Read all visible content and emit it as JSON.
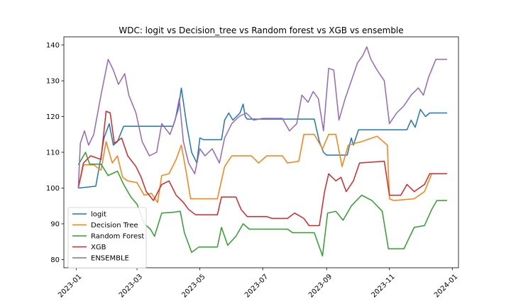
{
  "chart_data": {
    "type": "line",
    "title": "WDC: logit vs Decision_tree vs Random forest vs XGB vs ensemble",
    "xlabel": "",
    "ylabel": "",
    "x_range": [
      "2022-12-20",
      "2024-01-07"
    ],
    "ylim": [
      77.7,
      142.3
    ],
    "x_ticks": [
      {
        "date": "2023-01-01",
        "label": "2023-01"
      },
      {
        "date": "2023-03-01",
        "label": "2023-03"
      },
      {
        "date": "2023-05-01",
        "label": "2023-05"
      },
      {
        "date": "2023-07-01",
        "label": "2023-07"
      },
      {
        "date": "2023-09-01",
        "label": "2023-09"
      },
      {
        "date": "2023-11-01",
        "label": "2023-11"
      },
      {
        "date": "2024-01-01",
        "label": "2024-01"
      }
    ],
    "y_ticks": [
      80,
      90,
      100,
      110,
      120,
      130,
      140
    ],
    "grid": false,
    "legend_position": "lower-left",
    "series": [
      {
        "name": "logit",
        "color": "#1f77b4",
        "points": [
          [
            "2023-01-03",
            100
          ],
          [
            "2023-01-20",
            100.5
          ],
          [
            "2023-01-24",
            107
          ],
          [
            "2023-01-28",
            114
          ],
          [
            "2023-02-02",
            118
          ],
          [
            "2023-02-06",
            112
          ],
          [
            "2023-02-10",
            113
          ],
          [
            "2023-02-16",
            117.3
          ],
          [
            "2023-04-05",
            117.3
          ],
          [
            "2023-04-10",
            122
          ],
          [
            "2023-04-13",
            128
          ],
          [
            "2023-04-18",
            118
          ],
          [
            "2023-04-23",
            110
          ],
          [
            "2023-04-28",
            107
          ],
          [
            "2023-05-01",
            114
          ],
          [
            "2023-05-05",
            113.5
          ],
          [
            "2023-05-22",
            113.5
          ],
          [
            "2023-05-25",
            119
          ],
          [
            "2023-05-29",
            121
          ],
          [
            "2023-06-02",
            119
          ],
          [
            "2023-06-09",
            121
          ],
          [
            "2023-06-12",
            123.5
          ],
          [
            "2023-06-14",
            120
          ],
          [
            "2023-06-16",
            119.3
          ],
          [
            "2023-08-20",
            119.3
          ],
          [
            "2023-08-25",
            113
          ],
          [
            "2023-08-29",
            110
          ],
          [
            "2023-09-01",
            109.2
          ],
          [
            "2023-09-21",
            109.2
          ],
          [
            "2023-09-25",
            114
          ],
          [
            "2023-09-27",
            112
          ],
          [
            "2023-10-02",
            116.3
          ],
          [
            "2023-11-18",
            116.3
          ],
          [
            "2023-11-22",
            119
          ],
          [
            "2023-11-26",
            117
          ],
          [
            "2023-12-01",
            122
          ],
          [
            "2023-12-06",
            120
          ],
          [
            "2023-12-10",
            121
          ],
          [
            "2023-12-27",
            121
          ]
        ]
      },
      {
        "name": "Decision Tree",
        "color": "#ff7f0e",
        "points": [
          [
            "2023-01-03",
            100
          ],
          [
            "2023-01-08",
            106.5
          ],
          [
            "2023-01-18",
            106.5
          ],
          [
            "2023-01-25",
            105
          ],
          [
            "2023-01-30",
            113
          ],
          [
            "2023-02-05",
            107
          ],
          [
            "2023-02-10",
            109
          ],
          [
            "2023-02-15",
            103
          ],
          [
            "2023-02-20",
            102
          ],
          [
            "2023-03-01",
            101.5
          ],
          [
            "2023-03-08",
            98
          ],
          [
            "2023-03-15",
            98.5
          ],
          [
            "2023-03-21",
            96
          ],
          [
            "2023-03-25",
            103.5
          ],
          [
            "2023-04-01",
            104
          ],
          [
            "2023-04-08",
            108
          ],
          [
            "2023-04-13",
            112
          ],
          [
            "2023-04-18",
            104
          ],
          [
            "2023-04-22",
            97
          ],
          [
            "2023-05-01",
            97
          ],
          [
            "2023-05-18",
            97
          ],
          [
            "2023-05-25",
            106
          ],
          [
            "2023-06-01",
            109
          ],
          [
            "2023-06-20",
            109
          ],
          [
            "2023-06-27",
            107
          ],
          [
            "2023-07-05",
            109
          ],
          [
            "2023-07-20",
            109
          ],
          [
            "2023-07-25",
            107
          ],
          [
            "2023-08-05",
            107.5
          ],
          [
            "2023-08-10",
            115
          ],
          [
            "2023-08-20",
            115
          ],
          [
            "2023-08-28",
            111
          ],
          [
            "2023-09-03",
            115
          ],
          [
            "2023-09-10",
            115
          ],
          [
            "2023-09-16",
            106
          ],
          [
            "2023-09-22",
            112
          ],
          [
            "2023-10-05",
            113
          ],
          [
            "2023-10-20",
            114.5
          ],
          [
            "2023-10-30",
            112
          ],
          [
            "2023-11-01",
            97
          ],
          [
            "2023-11-05",
            96.5
          ],
          [
            "2023-11-25",
            97
          ],
          [
            "2023-12-05",
            99
          ],
          [
            "2023-12-12",
            104
          ],
          [
            "2023-12-27",
            104
          ]
        ]
      },
      {
        "name": "Random Forest",
        "color": "#2ca02c",
        "points": [
          [
            "2023-01-03",
            106.5
          ],
          [
            "2023-01-10",
            110
          ],
          [
            "2023-01-14",
            106.7
          ],
          [
            "2023-01-25",
            106.7
          ],
          [
            "2023-02-01",
            103.5
          ],
          [
            "2023-02-10",
            104.7
          ],
          [
            "2023-02-16",
            101
          ],
          [
            "2023-02-23",
            97.5
          ],
          [
            "2023-03-01",
            95.5
          ],
          [
            "2023-03-08",
            90
          ],
          [
            "2023-03-14",
            88.5
          ],
          [
            "2023-03-18",
            86.5
          ],
          [
            "2023-03-25",
            93
          ],
          [
            "2023-04-05",
            93.2
          ],
          [
            "2023-04-12",
            93.5
          ],
          [
            "2023-04-16",
            87.5
          ],
          [
            "2023-04-23",
            82
          ],
          [
            "2023-04-30",
            83.5
          ],
          [
            "2023-05-18",
            83.5
          ],
          [
            "2023-05-22",
            89
          ],
          [
            "2023-05-28",
            84
          ],
          [
            "2023-06-05",
            86.5
          ],
          [
            "2023-06-12",
            90
          ],
          [
            "2023-06-18",
            88.5
          ],
          [
            "2023-07-25",
            88.5
          ],
          [
            "2023-07-30",
            87.5
          ],
          [
            "2023-08-20",
            87.5
          ],
          [
            "2023-08-28",
            81
          ],
          [
            "2023-09-02",
            93
          ],
          [
            "2023-09-10",
            93.5
          ],
          [
            "2023-09-17",
            91
          ],
          [
            "2023-09-25",
            95
          ],
          [
            "2023-10-05",
            98
          ],
          [
            "2023-10-15",
            96.5
          ],
          [
            "2023-10-25",
            93.5
          ],
          [
            "2023-10-31",
            83
          ],
          [
            "2023-11-15",
            83
          ],
          [
            "2023-11-25",
            89
          ],
          [
            "2023-12-05",
            89.5
          ],
          [
            "2023-12-12",
            94
          ],
          [
            "2023-12-17",
            96.5
          ],
          [
            "2023-12-27",
            96.5
          ]
        ]
      },
      {
        "name": "XGB",
        "color": "#d62728",
        "points": [
          [
            "2023-01-03",
            100
          ],
          [
            "2023-01-08",
            107
          ],
          [
            "2023-01-15",
            109
          ],
          [
            "2023-01-25",
            108
          ],
          [
            "2023-01-30",
            121.5
          ],
          [
            "2023-02-03",
            121
          ],
          [
            "2023-02-07",
            112.5
          ],
          [
            "2023-02-14",
            114
          ],
          [
            "2023-02-20",
            109
          ],
          [
            "2023-02-28",
            106
          ],
          [
            "2023-03-05",
            103
          ],
          [
            "2023-03-10",
            99
          ],
          [
            "2023-03-17",
            96.5
          ],
          [
            "2023-03-25",
            101
          ],
          [
            "2023-04-01",
            102
          ],
          [
            "2023-04-08",
            98
          ],
          [
            "2023-04-15",
            96
          ],
          [
            "2023-04-20",
            94
          ],
          [
            "2023-04-27",
            92.5
          ],
          [
            "2023-05-18",
            92.5
          ],
          [
            "2023-05-22",
            97.5
          ],
          [
            "2023-06-05",
            97.5
          ],
          [
            "2023-06-10",
            94
          ],
          [
            "2023-06-16",
            92
          ],
          [
            "2023-07-05",
            92
          ],
          [
            "2023-07-10",
            91.5
          ],
          [
            "2023-07-25",
            91.5
          ],
          [
            "2023-08-01",
            93
          ],
          [
            "2023-08-10",
            91.5
          ],
          [
            "2023-08-15",
            89.5
          ],
          [
            "2023-08-25",
            89.5
          ],
          [
            "2023-08-30",
            99
          ],
          [
            "2023-09-03",
            104
          ],
          [
            "2023-09-10",
            102
          ],
          [
            "2023-09-15",
            103
          ],
          [
            "2023-09-20",
            99
          ],
          [
            "2023-09-27",
            102
          ],
          [
            "2023-10-03",
            107
          ],
          [
            "2023-10-27",
            107.5
          ],
          [
            "2023-11-01",
            98
          ],
          [
            "2023-11-12",
            98
          ],
          [
            "2023-11-18",
            101
          ],
          [
            "2023-11-25",
            99
          ],
          [
            "2023-12-05",
            101
          ],
          [
            "2023-12-10",
            104
          ],
          [
            "2023-12-27",
            104
          ]
        ]
      },
      {
        "name": "ENSEMBLE",
        "color": "#9467bd",
        "points": [
          [
            "2023-01-03",
            100
          ],
          [
            "2023-01-05",
            112.5
          ],
          [
            "2023-01-09",
            116
          ],
          [
            "2023-01-13",
            112
          ],
          [
            "2023-01-18",
            115
          ],
          [
            "2023-01-25",
            126
          ],
          [
            "2023-02-01",
            136
          ],
          [
            "2023-02-06",
            133
          ],
          [
            "2023-02-11",
            129
          ],
          [
            "2023-02-17",
            132
          ],
          [
            "2023-02-21",
            126
          ],
          [
            "2023-02-28",
            121
          ],
          [
            "2023-03-06",
            113
          ],
          [
            "2023-03-13",
            109
          ],
          [
            "2023-03-20",
            110
          ],
          [
            "2023-03-25",
            118
          ],
          [
            "2023-04-02",
            115
          ],
          [
            "2023-04-07",
            119
          ],
          [
            "2023-04-11",
            125
          ],
          [
            "2023-04-15",
            113
          ],
          [
            "2023-04-20",
            107
          ],
          [
            "2023-04-26",
            104
          ],
          [
            "2023-05-01",
            111
          ],
          [
            "2023-05-06",
            109
          ],
          [
            "2023-05-13",
            111
          ],
          [
            "2023-05-20",
            107
          ],
          [
            "2023-05-25",
            114
          ],
          [
            "2023-06-01",
            118
          ],
          [
            "2023-06-08",
            120
          ],
          [
            "2023-06-15",
            121
          ],
          [
            "2023-06-22",
            119
          ],
          [
            "2023-07-01",
            119.5
          ],
          [
            "2023-07-20",
            119.5
          ],
          [
            "2023-07-27",
            116
          ],
          [
            "2023-08-03",
            118
          ],
          [
            "2023-08-08",
            126
          ],
          [
            "2023-08-14",
            124
          ],
          [
            "2023-08-19",
            127
          ],
          [
            "2023-08-24",
            125
          ],
          [
            "2023-08-29",
            116
          ],
          [
            "2023-09-03",
            133.5
          ],
          [
            "2023-09-08",
            133
          ],
          [
            "2023-09-13",
            119
          ],
          [
            "2023-09-19",
            125
          ],
          [
            "2023-09-25",
            130
          ],
          [
            "2023-10-01",
            135
          ],
          [
            "2023-10-06",
            137
          ],
          [
            "2023-10-10",
            139.5
          ],
          [
            "2023-10-14",
            136
          ],
          [
            "2023-10-20",
            133
          ],
          [
            "2023-10-27",
            130
          ],
          [
            "2023-11-01",
            118
          ],
          [
            "2023-11-08",
            121
          ],
          [
            "2023-11-15",
            123
          ],
          [
            "2023-11-22",
            126
          ],
          [
            "2023-11-29",
            128
          ],
          [
            "2023-12-04",
            126
          ],
          [
            "2023-12-09",
            131
          ],
          [
            "2023-12-16",
            136
          ],
          [
            "2023-12-27",
            136
          ]
        ]
      }
    ]
  }
}
